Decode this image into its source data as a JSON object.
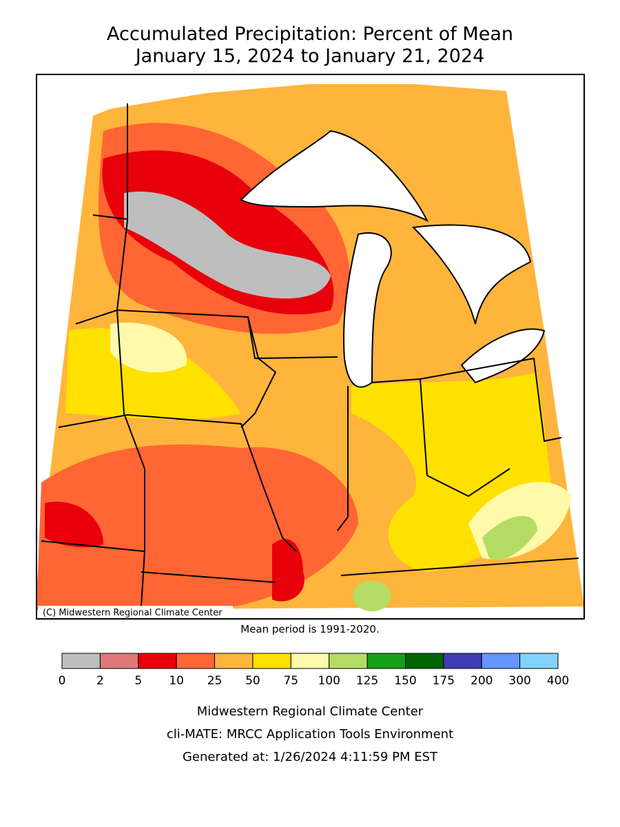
{
  "title": [
    "Accumulated Precipitation: Percent of Mean",
    "January 15, 2024 to January 21, 2024"
  ],
  "copyright": "(C) Midwestern Regional Climate Center",
  "mean_period": "Mean period is 1991-2020.",
  "legend": {
    "bins": [
      0,
      2,
      5,
      10,
      25,
      50,
      75,
      100,
      125,
      150,
      175,
      200,
      300,
      400
    ],
    "colors": [
      "#bebebe",
      "#e07878",
      "#e8000b",
      "#ff6633",
      "#ffb43c",
      "#ffe100",
      "#fffaaa",
      "#b4dc64",
      "#14a014",
      "#006400",
      "#3c3cb4",
      "#6496ff",
      "#82d2ff"
    ]
  },
  "footer": [
    "Midwestern Regional Climate Center",
    "cli-MATE: MRCC Application Tools Environment",
    "Generated at: 1/26/2024 4:11:59 PM EST"
  ]
}
